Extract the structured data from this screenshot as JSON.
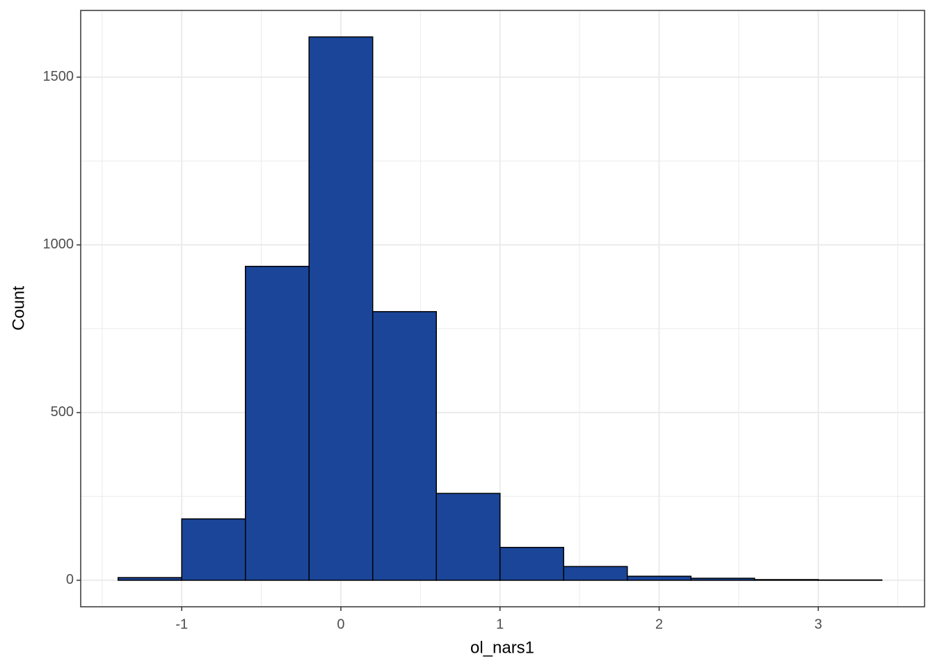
{
  "chart_data": {
    "type": "histogram",
    "x_label": "ol_nars1",
    "y_label": "Count",
    "bins": [
      -1.4,
      -1.0,
      -0.6,
      -0.2,
      0.2,
      0.6,
      1.0,
      1.4,
      1.8,
      2.2,
      2.6,
      3.0,
      3.4
    ],
    "counts": [
      8,
      183,
      936,
      1620,
      801,
      259,
      98,
      41,
      12,
      6,
      2,
      1
    ],
    "color": "#1a4599",
    "edge_color": "#000000",
    "xlim": [
      -1.635,
      3.668
    ],
    "ylim": [
      -79,
      1699
    ],
    "xticks": [
      -1,
      0,
      1,
      2,
      3
    ],
    "yticks": [
      0,
      500,
      1000,
      1500
    ],
    "x_minor_grid": [
      -1.5,
      -0.5,
      0.5,
      1.5,
      2.5,
      3.5
    ],
    "y_minor_grid": [
      250,
      750,
      1250
    ],
    "grid": true
  }
}
